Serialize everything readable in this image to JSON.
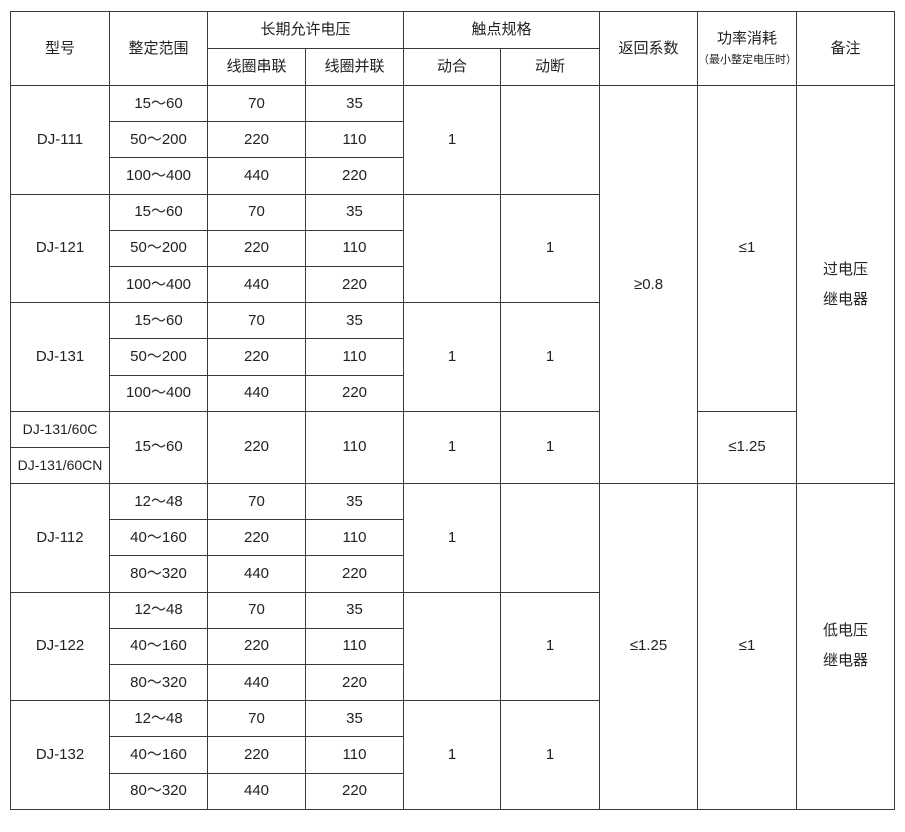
{
  "header": {
    "model": "型号",
    "range": "整定范围",
    "voltage": "长期允许电压",
    "series": "线圈串联",
    "parallel": "线圈并联",
    "contacts": "触点规格",
    "make": "动合",
    "break": "动断",
    "return": "返回系数",
    "power": "功率消耗",
    "power_note": "（最小整定电压时）",
    "remark": "备注"
  },
  "groups": [
    {
      "models": [
        "DJ-111"
      ],
      "make": "1",
      "break": "",
      "rows": [
        {
          "range": "15～60",
          "series": "70",
          "parallel": "35"
        },
        {
          "range": "50～200",
          "series": "220",
          "parallel": "110"
        },
        {
          "range": "100～400",
          "series": "440",
          "parallel": "220"
        }
      ]
    },
    {
      "models": [
        "DJ-121"
      ],
      "make": "",
      "break": "1",
      "rows": [
        {
          "range": "15～60",
          "series": "70",
          "parallel": "35"
        },
        {
          "range": "50～200",
          "series": "220",
          "parallel": "110"
        },
        {
          "range": "100～400",
          "series": "440",
          "parallel": "220"
        }
      ]
    },
    {
      "models": [
        "DJ-131"
      ],
      "make": "1",
      "break": "1",
      "rows": [
        {
          "range": "15～60",
          "series": "70",
          "parallel": "35"
        },
        {
          "range": "50～200",
          "series": "220",
          "parallel": "110"
        },
        {
          "range": "100～400",
          "series": "440",
          "parallel": "220"
        }
      ]
    },
    {
      "models": [
        "DJ-131/60C",
        "DJ-131/60CN"
      ],
      "make": "1",
      "break": "1",
      "rows": [
        {
          "range": "15～60",
          "series": "220",
          "parallel": "110"
        }
      ]
    },
    {
      "models": [
        "DJ-112"
      ],
      "make": "1",
      "break": "",
      "rows": [
        {
          "range": "12～48",
          "series": "70",
          "parallel": "35"
        },
        {
          "range": "40～160",
          "series": "220",
          "parallel": "110"
        },
        {
          "range": "80～320",
          "series": "440",
          "parallel": "220"
        }
      ]
    },
    {
      "models": [
        "DJ-122"
      ],
      "make": "",
      "break": "1",
      "rows": [
        {
          "range": "12～48",
          "series": "70",
          "parallel": "35"
        },
        {
          "range": "40～160",
          "series": "220",
          "parallel": "110"
        },
        {
          "range": "80～320",
          "series": "440",
          "parallel": "220"
        }
      ]
    },
    {
      "models": [
        "DJ-132"
      ],
      "make": "1",
      "break": "1",
      "rows": [
        {
          "range": "12～48",
          "series": "70",
          "parallel": "35"
        },
        {
          "range": "40～160",
          "series": "220",
          "parallel": "110"
        },
        {
          "range": "80～320",
          "series": "440",
          "parallel": "220"
        }
      ]
    }
  ],
  "return_coefficient": [
    {
      "value": "≥0.8",
      "groups": [
        0,
        1,
        2,
        3
      ]
    },
    {
      "value": "≤1.25",
      "groups": [
        4,
        5,
        6
      ]
    }
  ],
  "power_consumption": [
    {
      "value": "≤1",
      "groups": [
        0,
        1,
        2
      ]
    },
    {
      "value": "≤1.25",
      "groups": [
        3
      ]
    },
    {
      "value": "≤1",
      "groups": [
        4,
        5,
        6
      ]
    }
  ],
  "remarks": [
    {
      "lines": [
        "过电压",
        "继电器"
      ],
      "groups": [
        0,
        1,
        2,
        3
      ]
    },
    {
      "lines": [
        "低电压",
        "继电器"
      ],
      "groups": [
        4,
        5,
        6
      ]
    }
  ]
}
